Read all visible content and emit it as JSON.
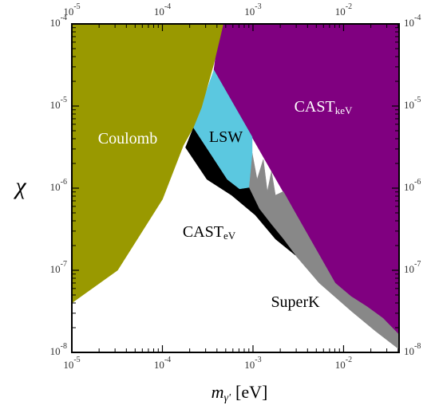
{
  "chart_data": {
    "type": "region",
    "xlabel": {
      "text": "m",
      "sub": "γ'",
      "unit": "[eV]"
    },
    "ylabel": "χ",
    "xscale": "log",
    "yscale": "log",
    "minor_ticks": true,
    "xlim": [
      1e-05,
      0.041
    ],
    "ylim": [
      1e-08,
      0.0001
    ],
    "xticks": [
      {
        "value": 1e-05,
        "label": {
          "base": "10",
          "exp": "-5"
        }
      },
      {
        "value": 0.0001,
        "label": {
          "base": "10",
          "exp": "-4"
        }
      },
      {
        "value": 0.001,
        "label": {
          "base": "10",
          "exp": "-3"
        }
      },
      {
        "value": 0.01,
        "label": {
          "base": "10",
          "exp": "-2"
        }
      }
    ],
    "yticks": [
      {
        "value": 1e-08,
        "label": {
          "base": "10",
          "exp": "-8"
        }
      },
      {
        "value": 1e-07,
        "label": {
          "base": "10",
          "exp": "-7"
        }
      },
      {
        "value": 1e-06,
        "label": {
          "base": "10",
          "exp": "-6"
        }
      },
      {
        "value": 1e-05,
        "label": {
          "base": "10",
          "exp": "-5"
        }
      },
      {
        "value": 0.0001,
        "label": {
          "base": "10",
          "exp": "-4"
        }
      }
    ],
    "series": [
      {
        "name": "CAST",
        "name_sub": "keV",
        "color": "#800080",
        "label_color": "#ffffff",
        "x": [
          0.00043,
          0.041,
          0.041,
          0.0273,
          0.0182,
          0.0121,
          0.00807,
          0.00037
        ],
        "y": [
          0.0001,
          0.0001,
          1.64e-08,
          2.6e-08,
          3.6e-08,
          4.8e-08,
          7e-08,
          2.74e-05
        ]
      },
      {
        "name": "SuperK",
        "color": "#888888",
        "label_color": "#000000",
        "x": [
          0.0009,
          0.00098,
          0.00111,
          0.0013,
          0.00144,
          0.0016,
          0.00177,
          0.00216,
          0.00293,
          0.00807,
          0.0121,
          0.0182,
          0.0273,
          0.041,
          0.041,
          0.0223,
          0.0121,
          0.00538,
          0.00293,
          0.00177,
          0.00117
        ],
        "y": [
          1.02e-06,
          2.67e-06,
          1.28e-06,
          2.24e-06,
          9.1e-07,
          1.6e-06,
          8.2e-07,
          9.1e-07,
          5e-07,
          7e-08,
          4.8e-08,
          3.6e-08,
          2.6e-08,
          1.64e-08,
          1.09e-08,
          1.83e-08,
          3.2e-08,
          7e-08,
          1.53e-07,
          2.4e-07,
          5.6e-07
        ]
      },
      {
        "name": "CAST",
        "name_sub": "eV",
        "color": "#000000",
        "label_color": "#000000",
        "x": [
          0.00022,
          0.00035,
          0.00052,
          0.00071,
          0.0009,
          0.00117,
          0.0016,
          0.00216,
          0.00293,
          0.00177,
          0.00106,
          0.00058,
          0.00031,
          0.00018
        ],
        "y": [
          5.47e-06,
          2.5e-06,
          1.28e-06,
          9.8e-07,
          1.02e-06,
          5.6e-07,
          3.6e-07,
          2.4e-07,
          1.53e-07,
          2.4e-07,
          4.7e-07,
          8.2e-07,
          1.28e-06,
          3.13e-06
        ]
      },
      {
        "name": "LSW",
        "color": "#5bc8e0",
        "label_color": "#000000",
        "x": [
          0.00037,
          0.00098,
          0.00098,
          0.0009,
          0.00071,
          0.00052,
          0.00035,
          0.00022
        ],
        "y": [
          2.74e-05,
          4.2e-06,
          2.67e-06,
          1.02e-06,
          9.8e-07,
          1.28e-06,
          2.5e-06,
          5.47e-06
        ]
      },
      {
        "name": "Coulomb",
        "color": "#999900",
        "label_color": "#ffffff",
        "x": [
          1e-05,
          0.00047,
          0.00037,
          0.00027,
          0.00022,
          0.00017,
          0.0001,
          3.2e-05,
          1e-05
        ],
        "y": [
          0.0001,
          0.0001,
          3.3e-05,
          9.6e-06,
          5.5e-06,
          3.3e-06,
          7.3e-07,
          1e-07,
          4e-08
        ]
      }
    ]
  }
}
